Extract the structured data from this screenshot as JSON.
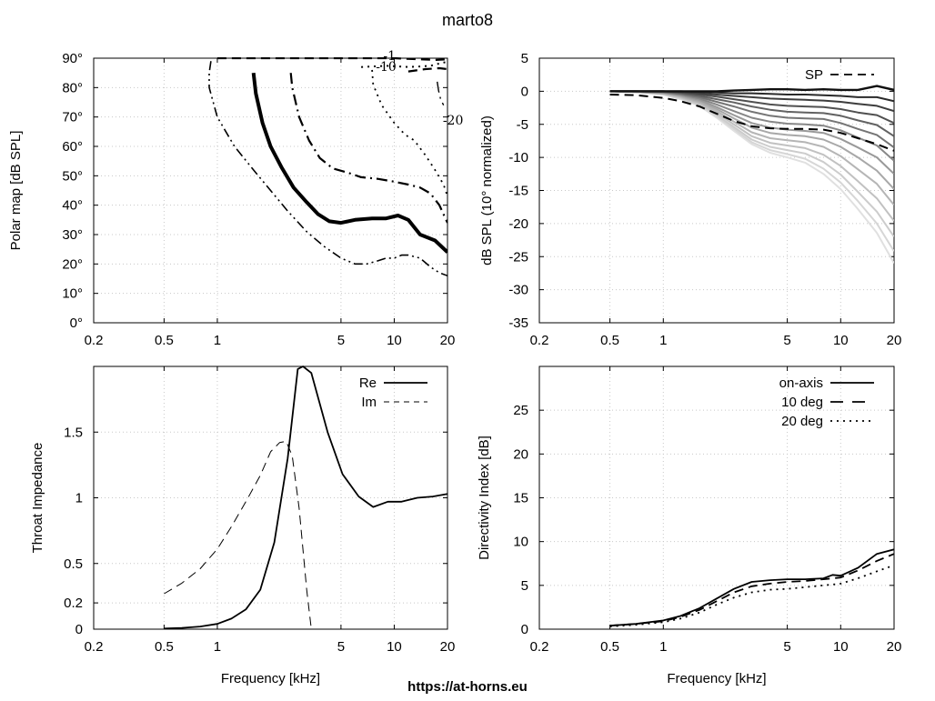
{
  "page": {
    "title": "marto8",
    "footer": "https://at-horns.eu"
  },
  "chart_data": [
    {
      "id": "polar",
      "type": "line",
      "subtype": "contour",
      "title": "",
      "xlabel": "",
      "ylabel": "Polar map [dB SPL]",
      "xscale": "log",
      "xlim": [
        0.2,
        20
      ],
      "ylim": [
        0,
        90
      ],
      "xticks": [
        0.2,
        0.5,
        1,
        5,
        10,
        20
      ],
      "xticklabels": [
        "0.2",
        "0.5",
        "1",
        "5",
        "10",
        "20"
      ],
      "yticks": [
        0,
        10,
        20,
        30,
        40,
        50,
        60,
        70,
        80,
        90
      ],
      "yticklabels": [
        "0°",
        "10°",
        "20°",
        "30°",
        "40°",
        "50°",
        "60°",
        "70°",
        "80°",
        "90°"
      ],
      "grid": true,
      "series": [
        {
          "style": "dashdotdot",
          "width": 1.6,
          "x": [
            0.92,
            0.9,
            0.9,
            1.0,
            1.25,
            1.6,
            2.0,
            2.5,
            3.2,
            4.0,
            5.0,
            6.0,
            7.0,
            8.0,
            9.0,
            10.0,
            11.0,
            12.0,
            14.0,
            16.0,
            18.0,
            20.0
          ],
          "y": [
            89,
            85,
            80,
            70,
            60,
            52,
            45,
            38,
            31,
            26,
            22,
            20,
            20,
            21,
            22,
            22,
            23,
            23,
            22,
            19,
            17,
            16
          ]
        },
        {
          "style": "solid",
          "width": 4,
          "x": [
            1.6,
            1.65,
            1.8,
            2.0,
            2.3,
            2.7,
            3.2,
            3.7,
            4.3,
            5.0,
            6.0,
            7.5,
            9.0,
            10.5,
            12.0,
            14.0,
            17.0,
            20.0
          ],
          "y": [
            85,
            78,
            68,
            60,
            53,
            46,
            41,
            37,
            34.5,
            34,
            35,
            35.5,
            35.5,
            36.5,
            35,
            30,
            28,
            24
          ]
        },
        {
          "style": "dashdot",
          "width": 2.2,
          "x": [
            2.6,
            2.65,
            2.9,
            3.3,
            3.8,
            4.5,
            5.5,
            6.5,
            8.0,
            10.0,
            12.0,
            14.0,
            16.0,
            18.0,
            20.0
          ],
          "y": [
            85,
            80,
            70,
            62,
            56,
            52.5,
            51,
            49.5,
            49,
            48,
            47,
            46,
            44,
            40,
            34
          ]
        },
        {
          "style": "dot",
          "width": 1.8,
          "x": [
            7.5,
            7.6,
            8.5,
            10.0,
            11.5,
            13.0,
            15.0,
            17.0,
            19.0,
            20.0
          ],
          "y": [
            86,
            81,
            74,
            68,
            64,
            62,
            57,
            52,
            47,
            43
          ]
        },
        {
          "style": "dashed",
          "width": 2.2,
          "x": [
            1.0,
            3.0,
            6.0,
            10.0,
            14.0,
            17.0,
            20.0
          ],
          "y": [
            90,
            90,
            90,
            90,
            89.6,
            89.4,
            89.6
          ]
        },
        {
          "style": "dot",
          "width": 2.0,
          "x": [
            6.5,
            9.0,
            12.0,
            14.0,
            16.0,
            18.0,
            20.0
          ],
          "y": [
            87,
            87.4,
            87,
            87.2,
            87.4,
            88.2,
            88.8
          ]
        },
        {
          "style": "dashed",
          "width": 2.2,
          "x": [
            12.0,
            15.0,
            18.0,
            20.0
          ],
          "y": [
            85.5,
            86.3,
            86.6,
            86.3
          ]
        },
        {
          "style": "dashdot",
          "width": 1.4,
          "x": [
            17.5,
            17.8,
            18.3,
            19.0
          ],
          "y": [
            82,
            79,
            76,
            74
          ]
        }
      ],
      "contour_labels": [
        {
          "text": "-1",
          "x": 9.4,
          "y": 89.4
        },
        {
          "text": "-10",
          "x": 9.0,
          "y": 85.6
        },
        {
          "text": "-20",
          "x": 21.5,
          "y": 67.5
        }
      ]
    },
    {
      "id": "polar_norm",
      "type": "line",
      "title": "",
      "xlabel": "",
      "ylabel": "dB SPL (10° normalized)",
      "xscale": "log",
      "xlim": [
        0.2,
        20
      ],
      "ylim": [
        -35,
        5
      ],
      "xticks": [
        0.2,
        0.5,
        1,
        5,
        10,
        20
      ],
      "xticklabels": [
        "0.2",
        "0.5",
        "1",
        "5",
        "10",
        "20"
      ],
      "yticks": [
        5,
        0,
        -5,
        -10,
        -15,
        -20,
        -25,
        -30,
        -35
      ],
      "yticklabels": [
        "5",
        "0",
        "-5",
        "-10",
        "-15",
        "-20",
        "-25",
        "-30",
        "-35"
      ],
      "grid": true,
      "legend": {
        "position": "top-right",
        "entries": [
          {
            "name": "SP",
            "style": "dashed"
          }
        ]
      },
      "x": [
        0.5,
        0.7,
        1.0,
        1.25,
        1.6,
        2.0,
        2.5,
        3.15,
        4.0,
        5.0,
        6.3,
        8.0,
        10.0,
        12.5,
        16.0,
        20.0
      ],
      "series": [
        {
          "color": "#101010",
          "width": 2.4,
          "values": [
            0,
            0,
            0,
            0,
            0,
            0,
            0.1,
            0.2,
            0.3,
            0.3,
            0.2,
            0.3,
            0.2,
            0.2,
            0.8,
            0.2
          ]
        },
        {
          "color": "#2a2a2a",
          "width": 2,
          "values": [
            0,
            0,
            0,
            0,
            -0.1,
            -0.2,
            -0.3,
            -0.3,
            -0.4,
            -0.5,
            -0.5,
            -0.6,
            -0.7,
            -0.9,
            -0.9,
            -1.5
          ]
        },
        {
          "color": "#3d3d3d",
          "width": 2,
          "values": [
            0,
            0,
            0,
            -0.1,
            -0.3,
            -0.5,
            -0.7,
            -0.9,
            -1.1,
            -1.2,
            -1.3,
            -1.4,
            -1.6,
            -1.9,
            -2.2,
            -3
          ]
        },
        {
          "color": "#505050",
          "width": 2,
          "values": [
            0,
            0,
            0,
            -0.2,
            -0.5,
            -0.8,
            -1.2,
            -1.6,
            -2.0,
            -2.2,
            -2.3,
            -2.4,
            -2.7,
            -3.2,
            -3.6,
            -4.8
          ]
        },
        {
          "color": "#626262",
          "width": 2,
          "values": [
            0,
            0,
            -0.1,
            -0.3,
            -0.7,
            -1.2,
            -1.7,
            -2.3,
            -2.8,
            -3.1,
            -3.2,
            -3.3,
            -3.7,
            -4.4,
            -5.1,
            -6.8
          ]
        },
        {
          "color": "#757575",
          "width": 2,
          "values": [
            0,
            0,
            -0.1,
            -0.4,
            -0.9,
            -1.6,
            -2.3,
            -3.1,
            -3.7,
            -4.0,
            -4.1,
            -4.2,
            -4.8,
            -5.7,
            -6.6,
            -8.5
          ]
        },
        {
          "color": "#878787",
          "width": 2,
          "values": [
            0,
            0,
            -0.2,
            -0.5,
            -1.1,
            -2.0,
            -3.0,
            -4.0,
            -4.6,
            -4.9,
            -5.0,
            -5.2,
            -5.9,
            -7.0,
            -8.2,
            -10.5
          ]
        },
        {
          "color": "#999999",
          "width": 2,
          "values": [
            0,
            -0.1,
            -0.2,
            -0.6,
            -1.3,
            -2.4,
            -3.6,
            -4.8,
            -5.5,
            -5.8,
            -6.0,
            -6.3,
            -7.2,
            -8.5,
            -10,
            -12.5
          ]
        },
        {
          "color": "#a8a8a8",
          "width": 2,
          "values": [
            0,
            -0.1,
            -0.3,
            -0.7,
            -1.5,
            -2.7,
            -4.1,
            -5.5,
            -6.3,
            -6.6,
            -6.8,
            -7.3,
            -8.4,
            -10,
            -12,
            -14.8
          ]
        },
        {
          "color": "#b5b5b5",
          "width": 2,
          "values": [
            0,
            -0.1,
            -0.3,
            -0.8,
            -1.7,
            -3.0,
            -4.6,
            -6.2,
            -7.1,
            -7.4,
            -7.7,
            -8.4,
            -9.8,
            -11.8,
            -14,
            -17.2
          ]
        },
        {
          "color": "#c1c1c1",
          "width": 2,
          "values": [
            0,
            -0.1,
            -0.4,
            -0.9,
            -1.9,
            -3.3,
            -5.0,
            -6.8,
            -7.8,
            -8.2,
            -8.6,
            -9.6,
            -11.3,
            -13.6,
            -16.2,
            -19.6
          ]
        },
        {
          "color": "#cccccc",
          "width": 2,
          "values": [
            0,
            -0.1,
            -0.4,
            -1.0,
            -2.0,
            -3.6,
            -5.4,
            -7.3,
            -8.4,
            -8.9,
            -9.4,
            -10.7,
            -12.6,
            -15.2,
            -18.2,
            -22
          ]
        },
        {
          "color": "#d6d6d6",
          "width": 2,
          "values": [
            0,
            -0.1,
            -0.5,
            -1.1,
            -2.1,
            -3.8,
            -5.7,
            -7.7,
            -8.9,
            -9.5,
            -10.2,
            -11.7,
            -13.8,
            -16.6,
            -20,
            -24.2
          ]
        },
        {
          "color": "#e0e0e0",
          "width": 2,
          "values": [
            0,
            -0.1,
            -0.5,
            -1.2,
            -2.2,
            -4.0,
            -6.0,
            -8.0,
            -9.3,
            -10.0,
            -10.8,
            -12.5,
            -14.8,
            -17.8,
            -21.4,
            -26
          ]
        }
      ],
      "sp": {
        "name": "SP",
        "style": "dashed",
        "values": [
          -0.5,
          -0.6,
          -1.0,
          -1.5,
          -2.3,
          -3.4,
          -4.5,
          -5.3,
          -5.6,
          -5.7,
          -5.7,
          -5.8,
          -6.3,
          -7.1,
          -8.0,
          -9.0
        ]
      }
    },
    {
      "id": "impedance",
      "type": "line",
      "title": "",
      "xlabel": "Frequency [kHz]",
      "ylabel": "Throat Impedance",
      "xscale": "log",
      "xlim": [
        0.2,
        20
      ],
      "ylim": [
        0,
        2
      ],
      "xticks": [
        0.2,
        0.5,
        1,
        5,
        10,
        20
      ],
      "xticklabels": [
        "0.2",
        "0.5",
        "1",
        "5",
        "10",
        "20"
      ],
      "yticks": [
        0,
        0.2,
        0.5,
        1,
        1.5
      ],
      "yticklabels": [
        "0",
        "0.2",
        "0.5",
        "1",
        "1.5",
        ""
      ],
      "grid": true,
      "legend": {
        "position": "top-right",
        "entries": [
          {
            "name": "Re",
            "style": "solid"
          },
          {
            "name": "Im",
            "style": "dashed"
          }
        ]
      },
      "series": [
        {
          "name": "Re",
          "style": "solid",
          "width": 1.8,
          "x": [
            0.5,
            0.63,
            0.8,
            1.0,
            1.2,
            1.45,
            1.75,
            2.1,
            2.5,
            2.85,
            3.05,
            3.4,
            4.2,
            5.1,
            6.3,
            7.6,
            9.2,
            11,
            13.5,
            16.5,
            20
          ],
          "y": [
            0.005,
            0.01,
            0.02,
            0.04,
            0.08,
            0.15,
            0.3,
            0.66,
            1.3,
            1.98,
            2.0,
            1.95,
            1.5,
            1.18,
            1.01,
            0.93,
            0.97,
            0.97,
            1.0,
            1.01,
            1.03
          ]
        },
        {
          "name": "Im",
          "style": "dashed",
          "width": 1.0,
          "x": [
            0.5,
            0.63,
            0.8,
            1.0,
            1.2,
            1.45,
            1.75,
            2.0,
            2.25,
            2.45,
            2.65,
            2.9,
            3.2,
            3.4
          ],
          "y": [
            0.27,
            0.35,
            0.46,
            0.61,
            0.78,
            0.97,
            1.17,
            1.35,
            1.42,
            1.43,
            1.32,
            0.92,
            0.3,
            0.0
          ]
        }
      ]
    },
    {
      "id": "di",
      "type": "line",
      "title": "",
      "xlabel": "Frequency [kHz]",
      "ylabel": "Directivity Index [dB]",
      "xscale": "log",
      "xlim": [
        0.2,
        20
      ],
      "ylim": [
        0,
        30
      ],
      "xticks": [
        0.2,
        0.5,
        1,
        5,
        10,
        20
      ],
      "xticklabels": [
        "0.2",
        "0.5",
        "1",
        "5",
        "10",
        "20"
      ],
      "yticks": [
        0,
        5,
        10,
        15,
        20,
        25
      ],
      "yticklabels": [
        "0",
        "5",
        "10",
        "15",
        "20",
        "25"
      ],
      "grid": true,
      "legend": {
        "position": "top-right",
        "entries": [
          {
            "name": "on-axis",
            "style": "solid"
          },
          {
            "name": "10 deg",
            "style": "dashed"
          },
          {
            "name": "20 deg",
            "style": "dot"
          }
        ]
      },
      "x": [
        0.5,
        0.7,
        1.0,
        1.25,
        1.6,
        2.0,
        2.5,
        3.15,
        4.0,
        5.0,
        6.3,
        8.0,
        9.0,
        10.0,
        12.5,
        16.0,
        20.0
      ],
      "series": [
        {
          "name": "on-axis",
          "style": "solid",
          "width": 1.8,
          "values": [
            0.4,
            0.6,
            1.0,
            1.5,
            2.4,
            3.5,
            4.6,
            5.4,
            5.6,
            5.7,
            5.7,
            5.8,
            6.2,
            6.1,
            7.0,
            8.6,
            9.1
          ]
        },
        {
          "name": "10 deg",
          "style": "dashed",
          "width": 1.8,
          "values": [
            0.4,
            0.6,
            0.9,
            1.4,
            2.2,
            3.2,
            4.2,
            4.9,
            5.2,
            5.4,
            5.5,
            5.7,
            5.8,
            5.9,
            6.7,
            7.8,
            8.6
          ]
        },
        {
          "name": "20 deg",
          "style": "dot",
          "width": 1.8,
          "values": [
            0.3,
            0.5,
            0.8,
            1.2,
            1.9,
            2.8,
            3.6,
            4.2,
            4.5,
            4.6,
            4.8,
            5.0,
            5.1,
            5.2,
            5.8,
            6.6,
            7.3
          ]
        }
      ]
    }
  ]
}
